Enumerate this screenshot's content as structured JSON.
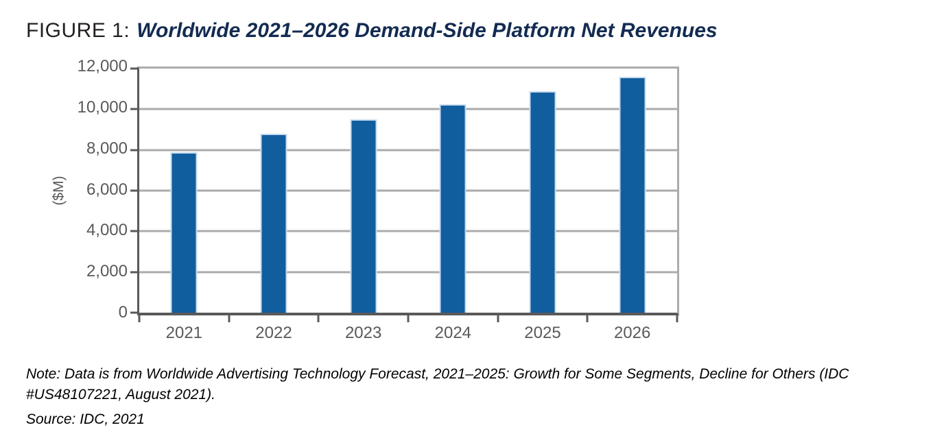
{
  "figure_header": {
    "label": "FIGURE 1:",
    "title": "Worldwide 2021–2026 Demand-Side Platform Net Revenues"
  },
  "chart_data": {
    "type": "bar",
    "title": "FIGURE 1: Worldwide 2021–2026 Demand-Side Platform Net Revenues",
    "categories": [
      "2021",
      "2022",
      "2023",
      "2024",
      "2025",
      "2026"
    ],
    "values": [
      7900,
      8800,
      9500,
      10250,
      10900,
      11600
    ],
    "unit": "$M",
    "xlabel": "",
    "ylabel": "($M)",
    "ylim": [
      0,
      12000
    ],
    "ytick_step": 2000,
    "ytick_labels": [
      "0",
      "2,000",
      "4,000",
      "6,000",
      "8,000",
      "10,000",
      "12,000"
    ],
    "grid": "horizontal",
    "legend": "none",
    "bar_color": "#115E9F",
    "bar_border_color": "#C9DCEE",
    "axis_color": "#595959",
    "gridline_color": "#ABABAB",
    "tick_label_color": "#595959"
  },
  "footnotes": {
    "note": "Note: Data is from Worldwide Advertising Technology Forecast, 2021–2025: Growth for Some Segments, Decline for Others (IDC #US48107221, August 2021).",
    "source": "Source: IDC, 2021"
  }
}
